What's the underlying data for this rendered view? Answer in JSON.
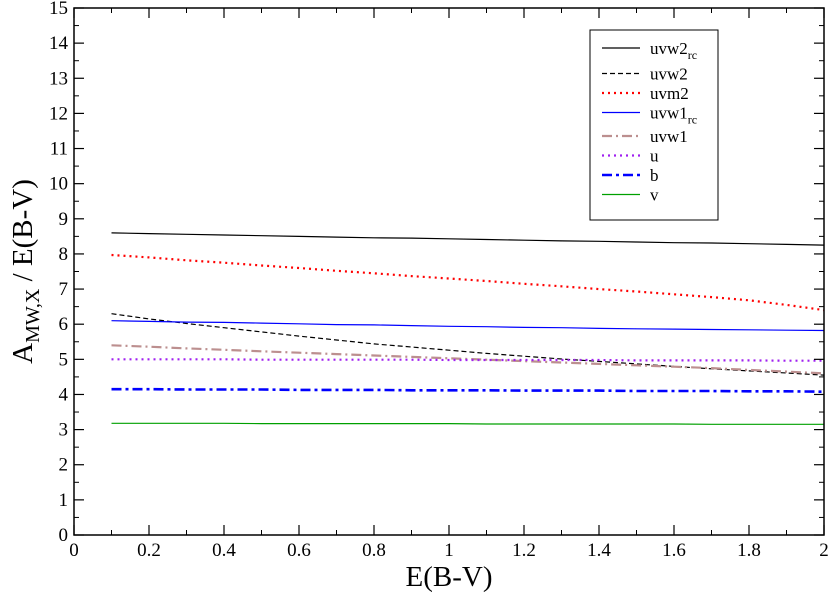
{
  "chart_data": {
    "type": "line",
    "title": "",
    "xlabel": "E(B-V)",
    "ylabel": {
      "base": "A",
      "sub": "MW,X",
      "rest": " / E(B-V)"
    },
    "xlim": [
      0,
      2
    ],
    "ylim": [
      0,
      15
    ],
    "x_ticks": [
      "0",
      "0.2",
      "0.4",
      "0.6",
      "0.8",
      "1",
      "1.2",
      "1.4",
      "1.6",
      "1.8",
      "2"
    ],
    "y_ticks": [
      "0",
      "1",
      "2",
      "3",
      "4",
      "5",
      "6",
      "7",
      "8",
      "9",
      "10",
      "11",
      "12",
      "13",
      "14",
      "15"
    ],
    "grid": false,
    "legend_position": "top-right",
    "x": [
      0.1,
      0.2,
      0.3,
      0.4,
      0.5,
      0.6,
      0.7,
      0.8,
      0.9,
      1.0,
      1.1,
      1.2,
      1.3,
      1.4,
      1.5,
      1.6,
      1.7,
      1.8,
      1.9,
      2.0
    ],
    "series": [
      {
        "name": "uvw2",
        "sub": "rc",
        "color": "#000000",
        "dash": "solid",
        "width": 1.2,
        "values": [
          8.6,
          8.58,
          8.56,
          8.54,
          8.52,
          8.5,
          8.48,
          8.46,
          8.45,
          8.43,
          8.41,
          8.39,
          8.37,
          8.36,
          8.34,
          8.32,
          8.31,
          8.29,
          8.27,
          8.25
        ]
      },
      {
        "name": "uvw2",
        "sub": "",
        "color": "#000000",
        "dash": "dashed",
        "width": 1.2,
        "values": [
          6.3,
          6.15,
          6.02,
          5.9,
          5.78,
          5.66,
          5.55,
          5.44,
          5.35,
          5.26,
          5.17,
          5.09,
          5.01,
          4.94,
          4.87,
          4.8,
          4.73,
          4.67,
          4.61,
          4.55
        ]
      },
      {
        "name": "uvm2",
        "sub": "",
        "color": "#ff0000",
        "dash": "dotted",
        "width": 2.2,
        "values": [
          7.97,
          7.9,
          7.82,
          7.75,
          7.67,
          7.6,
          7.52,
          7.45,
          7.37,
          7.3,
          7.23,
          7.15,
          7.08,
          7.0,
          6.93,
          6.85,
          6.77,
          6.68,
          6.55,
          6.4
        ]
      },
      {
        "name": "uvw1",
        "sub": "rc",
        "color": "#0000ff",
        "dash": "solid",
        "width": 1.2,
        "values": [
          6.1,
          6.08,
          6.06,
          6.05,
          6.03,
          6.01,
          5.99,
          5.98,
          5.96,
          5.94,
          5.93,
          5.91,
          5.9,
          5.88,
          5.87,
          5.86,
          5.85,
          5.84,
          5.83,
          5.82
        ]
      },
      {
        "name": "uvw1",
        "sub": "",
        "color": "#bc8f8f",
        "dash": "dashdot",
        "width": 2.2,
        "values": [
          5.4,
          5.36,
          5.31,
          5.27,
          5.23,
          5.19,
          5.15,
          5.11,
          5.07,
          5.03,
          4.99,
          4.95,
          4.91,
          4.87,
          4.83,
          4.79,
          4.75,
          4.7,
          4.65,
          4.6
        ]
      },
      {
        "name": "u",
        "sub": "",
        "color": "#a020f0",
        "dash": "dotted",
        "width": 2.2,
        "values": [
          5.0,
          5.0,
          5.0,
          5.0,
          4.99,
          4.99,
          4.99,
          4.99,
          4.99,
          4.98,
          4.98,
          4.98,
          4.98,
          4.98,
          4.97,
          4.97,
          4.97,
          4.97,
          4.96,
          4.96
        ]
      },
      {
        "name": "b",
        "sub": "",
        "color": "#0000ff",
        "dash": "dashdot-bold",
        "width": 2.6,
        "values": [
          4.15,
          4.15,
          4.14,
          4.14,
          4.14,
          4.13,
          4.13,
          4.13,
          4.12,
          4.12,
          4.12,
          4.11,
          4.11,
          4.11,
          4.1,
          4.1,
          4.1,
          4.09,
          4.09,
          4.08
        ]
      },
      {
        "name": "v",
        "sub": "",
        "color": "#00a000",
        "dash": "solid",
        "width": 1.2,
        "values": [
          3.18,
          3.18,
          3.18,
          3.18,
          3.17,
          3.17,
          3.17,
          3.17,
          3.17,
          3.17,
          3.16,
          3.16,
          3.16,
          3.16,
          3.16,
          3.16,
          3.15,
          3.15,
          3.15,
          3.15
        ]
      }
    ]
  }
}
